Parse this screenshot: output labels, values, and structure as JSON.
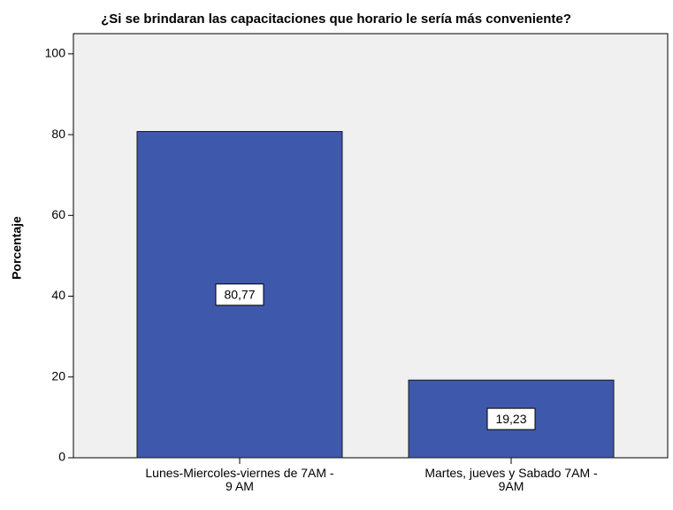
{
  "chart_data": {
    "type": "bar",
    "title": "¿Si se brindaran las capacitaciones que horario le sería más conveniente?",
    "ylabel": "Porcentaje",
    "categories": [
      "Lunes-Miercoles-viernes de 7AM -\n9 AM",
      "Martes, jueves y Sabado 7AM -\n9AM"
    ],
    "values": [
      80.77,
      19.23
    ],
    "value_labels": [
      "80,77",
      "19,23"
    ],
    "color": "#3e58ac",
    "ylim": [
      0,
      105
    ],
    "yticks": [
      0,
      20,
      40,
      60,
      80,
      100
    ]
  }
}
